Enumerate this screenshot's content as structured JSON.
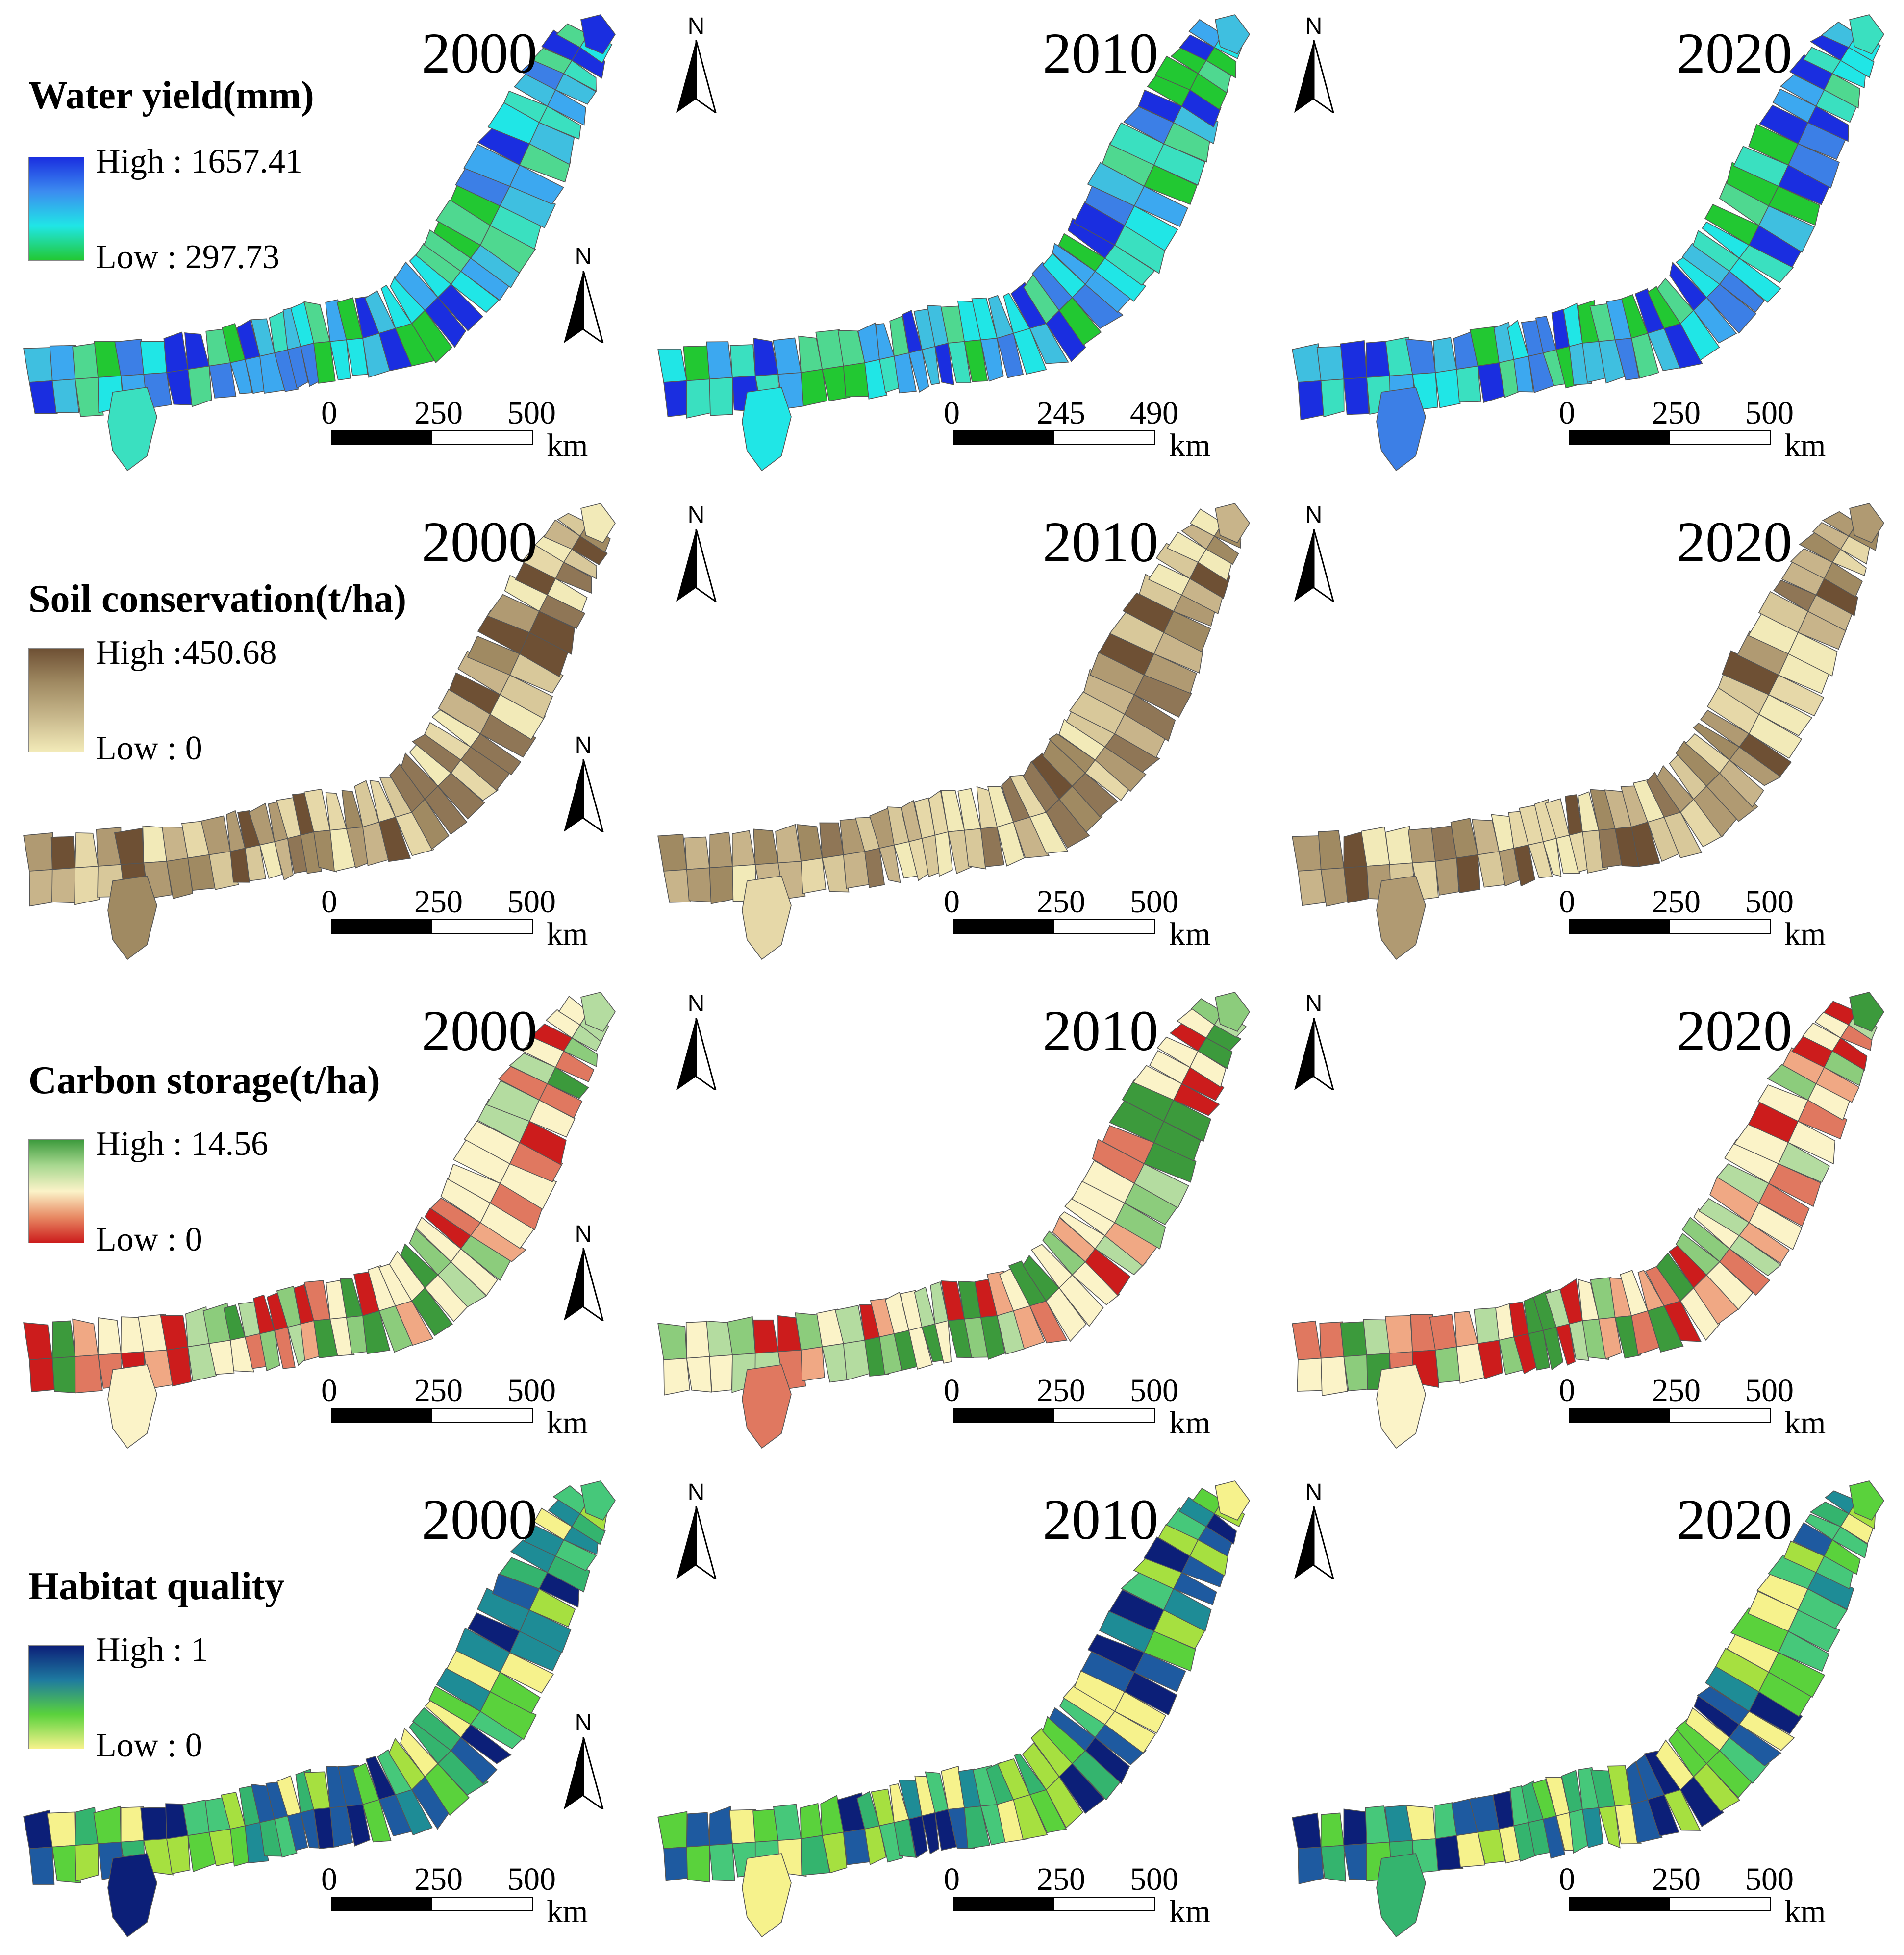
{
  "figure": {
    "rows": [
      {
        "indicator": "Water yield(mm)",
        "legend_high": "High : 1657.41",
        "legend_low": "Low : 297.73",
        "ramp_colors": [
          "#1a2ee0",
          "#3c8cf0",
          "#20e6e6",
          "#22c832"
        ],
        "region_palette": [
          "#22c832",
          "#4fd890",
          "#20e6e6",
          "#3ca8f0",
          "#3c7fe6",
          "#1a2ee0",
          "#3fbfe0",
          "#3ae0c0"
        ],
        "panels": [
          {
            "year": "2000",
            "scale": {
              "ticks": [
                "0",
                "250",
                "500"
              ],
              "unit": "km"
            }
          },
          {
            "year": "2010",
            "scale": {
              "ticks": [
                "0",
                "245",
                "490"
              ],
              "unit": "km"
            }
          },
          {
            "year": "2020",
            "scale": {
              "ticks": [
                "0",
                "250",
                "500"
              ],
              "unit": "km"
            }
          }
        ]
      },
      {
        "indicator": "Soil conservation(t/ha)",
        "legend_high": "High :450.68",
        "legend_low": "Low : 0",
        "ramp_colors": [
          "#6e5034",
          "#a08a62",
          "#c8b88c",
          "#f2eab8"
        ],
        "region_palette": [
          "#f2eab8",
          "#e6d8a8",
          "#c8b48a",
          "#b09a72",
          "#8f7656",
          "#6e5034",
          "#d8c89a",
          "#a08a62"
        ],
        "panels": [
          {
            "year": "2000",
            "scale": {
              "ticks": [
                "0",
                "250",
                "500"
              ],
              "unit": "km"
            }
          },
          {
            "year": "2010",
            "scale": {
              "ticks": [
                "0",
                "250",
                "500"
              ],
              "unit": "km"
            }
          },
          {
            "year": "2020",
            "scale": {
              "ticks": [
                "0",
                "250",
                "500"
              ],
              "unit": "km"
            }
          }
        ]
      },
      {
        "indicator": "Carbon storage(t/ha)",
        "legend_high": "High : 14.56",
        "legend_low": "Low : 0",
        "ramp_colors": [
          "#3c9a3c",
          "#a8d890",
          "#fbf3c8",
          "#e88a64",
          "#cc1c1c"
        ],
        "region_palette": [
          "#cc1c1c",
          "#e07860",
          "#f0a884",
          "#fbf3c8",
          "#b4dca0",
          "#8ccc7c",
          "#3c9a3c",
          "#fbf3c8"
        ],
        "panels": [
          {
            "year": "2000",
            "scale": {
              "ticks": [
                "0",
                "250",
                "500"
              ],
              "unit": "km"
            }
          },
          {
            "year": "2010",
            "scale": {
              "ticks": [
                "0",
                "250",
                "500"
              ],
              "unit": "km"
            }
          },
          {
            "year": "2020",
            "scale": {
              "ticks": [
                "0",
                "250",
                "500"
              ],
              "unit": "km"
            }
          }
        ]
      },
      {
        "indicator": "Habitat quality",
        "legend_high": "High : 1",
        "legend_low": "Low : 0",
        "ramp_colors": [
          "#0c1f78",
          "#1e7aa0",
          "#5ad23c",
          "#f6f28c"
        ],
        "region_palette": [
          "#f6f28c",
          "#a6e040",
          "#5ad23c",
          "#34b46e",
          "#1e8c96",
          "#1e5aa0",
          "#0c1f78",
          "#46c87a"
        ],
        "panels": [
          {
            "year": "2000",
            "scale": {
              "ticks": [
                "0",
                "250",
                "500"
              ],
              "unit": "km"
            }
          },
          {
            "year": "2010",
            "scale": {
              "ticks": [
                "0",
                "250",
                "500"
              ],
              "unit": "km"
            }
          },
          {
            "year": "2020",
            "scale": {
              "ticks": [
                "0",
                "250",
                "500"
              ],
              "unit": "km"
            }
          }
        ]
      }
    ],
    "north_label": "N",
    "boundary_color": "#555555"
  }
}
